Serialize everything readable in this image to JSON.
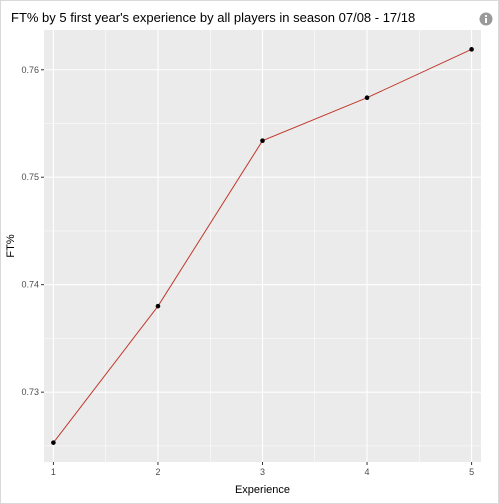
{
  "header": {
    "title": "FT% by 5 first year's experience by all players in season 07/08 - 17/18",
    "info_icon": "info-icon"
  },
  "colors": {
    "panel_background": "#ebebeb",
    "gridline": "#ffffff",
    "line": "#c0392b",
    "point": "#000000"
  },
  "chart_data": {
    "type": "line",
    "title": "FT% by 5 first year's experience by all players in season 07/08 - 17/18",
    "xlabel": "Experience",
    "ylabel": "FT%",
    "x": [
      1,
      2,
      3,
      4,
      5
    ],
    "series": [
      {
        "values": [
          0.7253,
          0.738,
          0.7534,
          0.7574,
          0.7619
        ]
      }
    ],
    "xlim": [
      0.91,
      5.09
    ],
    "ylim": [
      0.7235,
      0.7637
    ],
    "xticks": [
      1,
      2,
      3,
      4,
      5
    ],
    "xtick_labels": [
      "1",
      "2",
      "3",
      "4",
      "5"
    ],
    "yticks": [
      0.73,
      0.74,
      0.75,
      0.76
    ],
    "ytick_labels": [
      "0.73",
      "0.74",
      "0.75",
      "0.76"
    ],
    "grid": true,
    "legend": "none"
  }
}
